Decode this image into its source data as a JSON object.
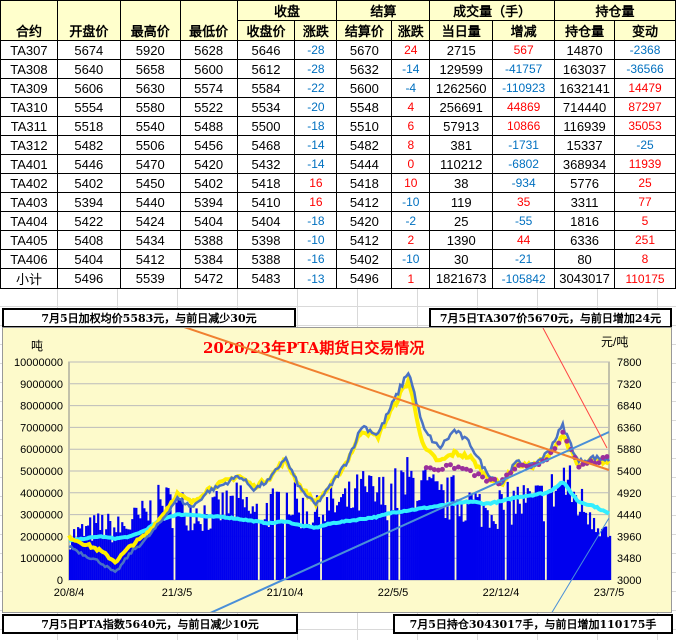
{
  "table": {
    "headers": {
      "contract": "合约",
      "open": "开盘价",
      "high": "最高价",
      "low": "最低价",
      "close_group": "收盘",
      "close": "收盘价",
      "close_chg": "涨跌",
      "settle_group": "结算",
      "settle": "结算价",
      "settle_chg": "涨跌",
      "volume_group": "成交量（手）",
      "volume": "当日量",
      "volume_chg": "增减",
      "oi_group": "持仓量",
      "oi": "持仓量",
      "oi_chg": "变动"
    },
    "rows": [
      [
        "TA307",
        "5674",
        "5920",
        "5628",
        "5646",
        "-28",
        "5670",
        "24",
        "2715",
        "567",
        "14870",
        "-2368"
      ],
      [
        "TA308",
        "5640",
        "5658",
        "5600",
        "5612",
        "-28",
        "5632",
        "-14",
        "129599",
        "-41757",
        "163037",
        "-36566"
      ],
      [
        "TA309",
        "5606",
        "5630",
        "5574",
        "5584",
        "-22",
        "5600",
        "-4",
        "1262560",
        "-110923",
        "1632141",
        "14479"
      ],
      [
        "TA310",
        "5554",
        "5580",
        "5522",
        "5534",
        "-20",
        "5548",
        "4",
        "256691",
        "44869",
        "714440",
        "87297"
      ],
      [
        "TA311",
        "5518",
        "5540",
        "5488",
        "5500",
        "-18",
        "5510",
        "6",
        "57913",
        "10866",
        "116939",
        "35053"
      ],
      [
        "TA312",
        "5482",
        "5506",
        "5456",
        "5468",
        "-14",
        "5482",
        "8",
        "381",
        "-1731",
        "15337",
        "-25"
      ],
      [
        "TA401",
        "5446",
        "5470",
        "5420",
        "5432",
        "-14",
        "5444",
        "0",
        "110212",
        "-6802",
        "368934",
        "11939"
      ],
      [
        "TA402",
        "5402",
        "5450",
        "5402",
        "5418",
        "16",
        "5418",
        "10",
        "38",
        "-934",
        "5776",
        "25"
      ],
      [
        "TA403",
        "5394",
        "5440",
        "5394",
        "5410",
        "16",
        "5412",
        "-10",
        "119",
        "35",
        "3311",
        "77"
      ],
      [
        "TA404",
        "5422",
        "5424",
        "5404",
        "5404",
        "-18",
        "5420",
        "-2",
        "25",
        "-55",
        "1816",
        "5"
      ],
      [
        "TA405",
        "5408",
        "5434",
        "5388",
        "5398",
        "-10",
        "5412",
        "2",
        "1390",
        "44",
        "6336",
        "251"
      ],
      [
        "TA406",
        "5404",
        "5412",
        "5384",
        "5388",
        "-16",
        "5402",
        "-10",
        "30",
        "-21",
        "80",
        "8"
      ],
      [
        "小计",
        "5496",
        "5539",
        "5472",
        "5483",
        "-13",
        "5496",
        "1",
        "1821673",
        "-105842",
        "3043017",
        "110175"
      ]
    ]
  },
  "callouts": {
    "weighted_avg": "7月5日加权均价5583元，与前日减少30元",
    "ta307": "7月5日TA307价5670元，与前日增加24元",
    "index": "7月5日PTA指数5640元，与前日减少10元",
    "oi": "7月5日持仓3043017手，与前日增加110175手"
  },
  "chart_data": {
    "type": "line",
    "title": "2020/23年PTA期货日交易情况",
    "ylabel_left": "吨",
    "ylabel_right": "元/吨",
    "ylim_left": [
      0,
      10000000
    ],
    "yticks_left": [
      "0",
      "1000000",
      "2000000",
      "3000000",
      "4000000",
      "5000000",
      "6000000",
      "7000000",
      "8000000",
      "9000000",
      "10000000"
    ],
    "ylim_right": [
      3000,
      7800
    ],
    "yticks_right": [
      "3000",
      "3480",
      "3960",
      "4440",
      "4920",
      "5400",
      "5880",
      "6360",
      "6840",
      "7320",
      "7800"
    ],
    "xticks": [
      "20/8/4",
      "21/3/5",
      "21/10/4",
      "22/5/5",
      "22/12/4",
      "23/7/5"
    ],
    "grid": true,
    "colors": {
      "price": "#4a72c4",
      "weighted_avg": "#ffee00",
      "settle": "#9b2f9b",
      "open_interest": "#33eeff",
      "volume": "#0000ee"
    },
    "series": {
      "price": [
        3750,
        3550,
        3400,
        3150,
        3600,
        3900,
        4300,
        4800,
        4600,
        4950,
        5100,
        5300,
        5000,
        5200,
        5700,
        5000,
        4650,
        5100,
        5600,
        6400,
        6200,
        6900,
        7600,
        6300,
        5900,
        6300,
        6000,
        5400,
        5100,
        5600,
        5500,
        5800,
        6400,
        5600,
        5700,
        5640
      ],
      "weighted_avg": [
        3950,
        3800,
        3650,
        3400,
        3750,
        4000,
        4400,
        4900,
        4700,
        5000,
        5150,
        5300,
        5050,
        5250,
        5650,
        5050,
        4700,
        5100,
        5600,
        6300,
        6150,
        6800,
        7400,
        5900,
        5600,
        5800,
        5700,
        5300,
        5100,
        5550,
        5500,
        5700,
        6200,
        5500,
        5650,
        5583
      ],
      "settle": [
        null,
        null,
        null,
        null,
        null,
        null,
        null,
        null,
        null,
        null,
        null,
        null,
        null,
        null,
        null,
        null,
        null,
        null,
        null,
        null,
        null,
        null,
        null,
        5500,
        5450,
        5500,
        5400,
        5200,
        5150,
        5500,
        5450,
        5700,
        6200,
        5500,
        5600,
        5670
      ],
      "open_interest": [
        1800000,
        1900000,
        2000000,
        1900000,
        2000000,
        2300000,
        2800000,
        3000000,
        3000000,
        2900000,
        2900000,
        2800000,
        2700000,
        2600000,
        2700000,
        2500000,
        2400000,
        2600000,
        2700000,
        2800000,
        2900000,
        3100000,
        3200000,
        3300000,
        3400000,
        3500000,
        3600000,
        3500000,
        3600000,
        3800000,
        3900000,
        4000000,
        4500000,
        3600000,
        3400000,
        3043017
      ],
      "volume": [
        2000000,
        2200000,
        2500000,
        2300000,
        2600000,
        3000000,
        3500000,
        3300000,
        3200000,
        3000000,
        3300000,
        3500000,
        3000000,
        3300000,
        3800000,
        3200000,
        3000000,
        3400000,
        3500000,
        4000000,
        3800000,
        4000000,
        4500000,
        4200000,
        3600000,
        3800000,
        3500000,
        3200000,
        3400000,
        3600000,
        3500000,
        3800000,
        4600000,
        3500000,
        3000000,
        1821673
      ]
    }
  }
}
